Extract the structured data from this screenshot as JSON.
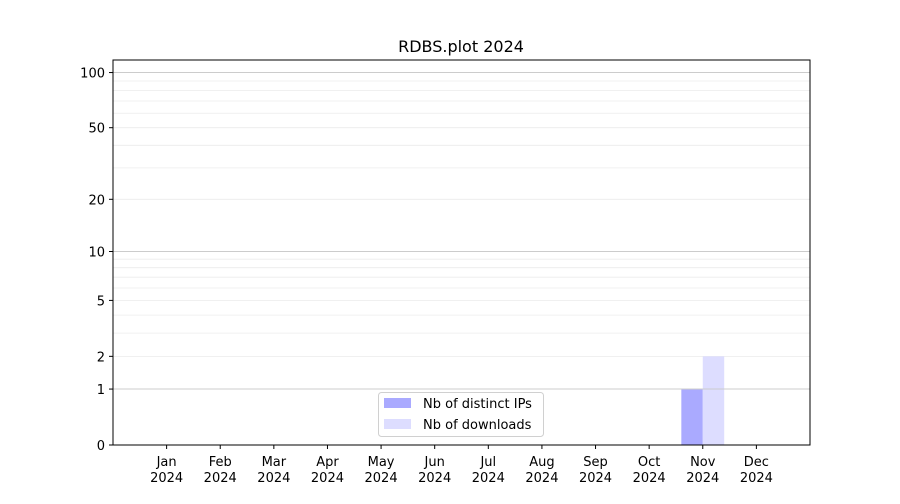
{
  "chart_data": {
    "type": "bar",
    "title": "RDBS.plot 2024",
    "xlabel": "",
    "ylabel": "",
    "y_scale": "log(1+y)",
    "ylim": [
      0,
      117
    ],
    "y_ticks": [
      0,
      1,
      2,
      5,
      10,
      20,
      50,
      100
    ],
    "grid": true,
    "legend_position": "lower-center",
    "categories": [
      [
        "Jan",
        "2024"
      ],
      [
        "Feb",
        "2024"
      ],
      [
        "Mar",
        "2024"
      ],
      [
        "Apr",
        "2024"
      ],
      [
        "May",
        "2024"
      ],
      [
        "Jun",
        "2024"
      ],
      [
        "Jul",
        "2024"
      ],
      [
        "Aug",
        "2024"
      ],
      [
        "Sep",
        "2024"
      ],
      [
        "Oct",
        "2024"
      ],
      [
        "Nov",
        "2024"
      ],
      [
        "Dec",
        "2024"
      ]
    ],
    "series": [
      {
        "name": "Nb of distinct IPs",
        "color": "#aaaaff",
        "values": [
          0,
          0,
          0,
          0,
          0,
          0,
          0,
          0,
          0,
          0,
          1,
          0
        ]
      },
      {
        "name": "Nb of downloads",
        "color": "#ddddff",
        "values": [
          0,
          0,
          0,
          0,
          0,
          0,
          0,
          0,
          0,
          0,
          2,
          0
        ]
      }
    ]
  }
}
